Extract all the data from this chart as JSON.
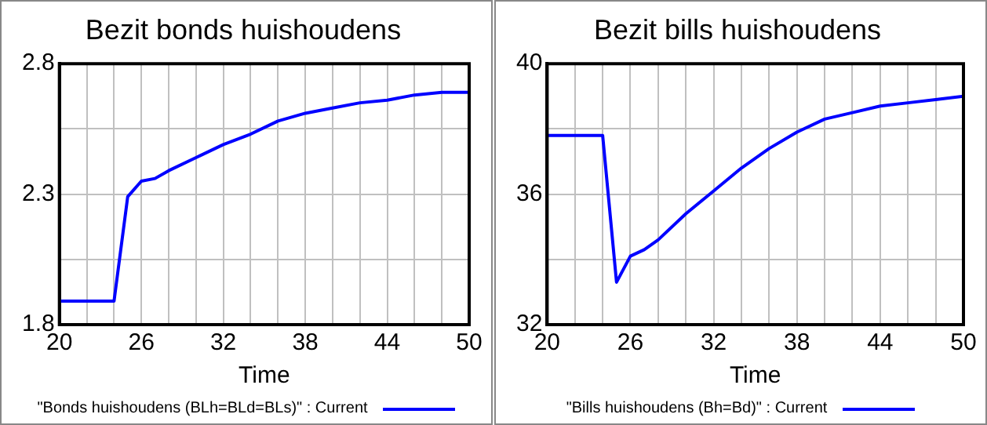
{
  "chart_data": [
    {
      "type": "line",
      "title": "Bezit bonds huishoudens",
      "xlabel": "Time",
      "x": [
        20,
        24,
        25,
        26,
        27,
        28,
        30,
        32,
        34,
        36,
        38,
        40,
        42,
        44,
        46,
        48,
        50
      ],
      "series": [
        {
          "name": "\"Bonds huishoudens (BLh=BLd=BLs)\" : Current",
          "color": "#0000ff",
          "values": [
            1.89,
            1.89,
            2.29,
            2.35,
            2.36,
            2.39,
            2.44,
            2.49,
            2.53,
            2.58,
            2.61,
            2.63,
            2.65,
            2.66,
            2.68,
            2.69,
            2.69
          ]
        }
      ],
      "xlim": [
        20,
        50
      ],
      "xticks": [
        20,
        {
          "value": 22,
          "label": null
        },
        {
          "value": 24,
          "label": null
        },
        26,
        {
          "value": 28,
          "label": null
        },
        {
          "value": 30,
          "label": null
        },
        32,
        {
          "value": 34,
          "label": null
        },
        {
          "value": 36,
          "label": null
        },
        38,
        {
          "value": 40,
          "label": null
        },
        {
          "value": 42,
          "label": null
        },
        44,
        {
          "value": 46,
          "label": null
        },
        {
          "value": 48,
          "label": null
        },
        50
      ],
      "ylim": [
        1.8,
        2.8
      ],
      "yticks": [
        1.8,
        {
          "value": 2.05,
          "label": null
        },
        2.3,
        {
          "value": 2.55,
          "label": null
        },
        2.8
      ],
      "grid": true,
      "legend": "bottom",
      "marker": "none",
      "line_style": "solid"
    },
    {
      "type": "line",
      "title": "Bezit bills huishoudens",
      "xlabel": "Time",
      "x": [
        20,
        24,
        25,
        26,
        27,
        28,
        30,
        32,
        34,
        36,
        38,
        40,
        42,
        44,
        46,
        48,
        50
      ],
      "series": [
        {
          "name": "\"Bills huishoudens (Bh=Bd)\" : Current",
          "color": "#0000ff",
          "values": [
            37.8,
            37.8,
            33.3,
            34.1,
            34.3,
            34.6,
            35.4,
            36.1,
            36.8,
            37.4,
            37.9,
            38.3,
            38.5,
            38.7,
            38.8,
            38.9,
            39.0
          ]
        }
      ],
      "xlim": [
        20,
        50
      ],
      "xticks": [
        20,
        {
          "value": 22,
          "label": null
        },
        {
          "value": 24,
          "label": null
        },
        26,
        {
          "value": 28,
          "label": null
        },
        {
          "value": 30,
          "label": null
        },
        32,
        {
          "value": 34,
          "label": null
        },
        {
          "value": 36,
          "label": null
        },
        38,
        {
          "value": 40,
          "label": null
        },
        {
          "value": 42,
          "label": null
        },
        44,
        {
          "value": 46,
          "label": null
        },
        {
          "value": 48,
          "label": null
        },
        50
      ],
      "ylim": [
        32,
        40
      ],
      "yticks": [
        32,
        {
          "value": 34,
          "label": null
        },
        36,
        {
          "value": 38,
          "label": null
        },
        40
      ],
      "grid": true,
      "legend": "bottom",
      "marker": "none",
      "line_style": "solid"
    }
  ]
}
